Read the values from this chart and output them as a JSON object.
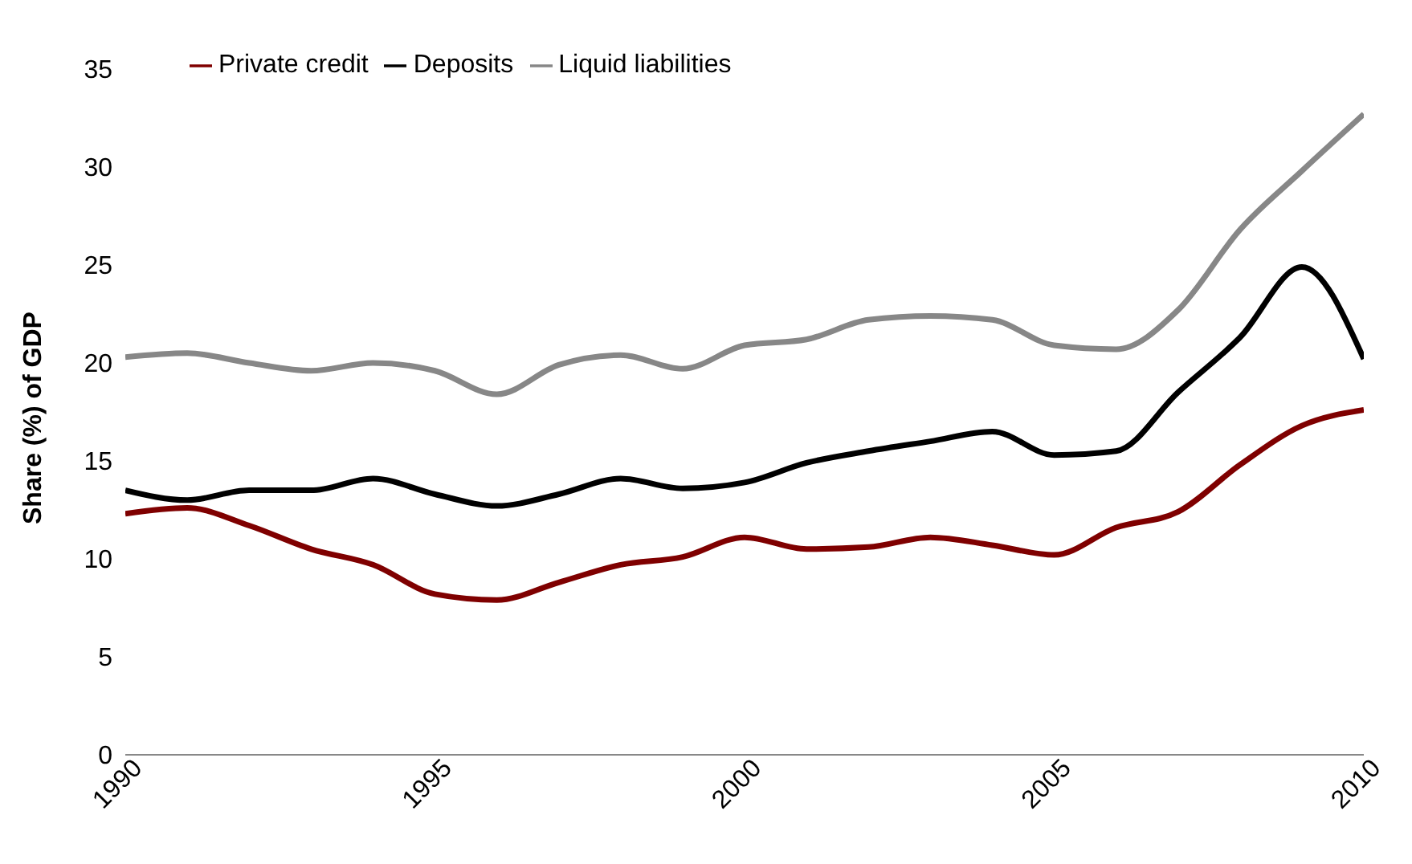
{
  "chart_data": {
    "type": "line",
    "ylabel": "Share (%) of GDP",
    "x": [
      1990,
      1991,
      1992,
      1993,
      1994,
      1995,
      1996,
      1997,
      1998,
      1999,
      2000,
      2001,
      2002,
      2003,
      2004,
      2005,
      2006,
      2007,
      2008,
      2009,
      2010
    ],
    "series": [
      {
        "name": "Private credit",
        "color": "#7f0000",
        "values": [
          12.3,
          12.6,
          11.7,
          10.5,
          9.7,
          8.2,
          7.9,
          8.8,
          9.7,
          10.1,
          11.1,
          10.5,
          10.6,
          11.1,
          10.7,
          10.2,
          11.6,
          12.4,
          14.8,
          16.8,
          17.6
        ]
      },
      {
        "name": "Deposits",
        "color": "#000000",
        "values": [
          13.5,
          13.0,
          13.5,
          13.5,
          14.1,
          13.3,
          12.7,
          13.3,
          14.1,
          13.6,
          13.9,
          14.9,
          15.5,
          16.0,
          16.5,
          15.3,
          15.5,
          18.5,
          21.3,
          24.9,
          20.2
        ]
      },
      {
        "name": "Liquid liabilities",
        "color": "#878787",
        "values": [
          20.3,
          20.5,
          20.0,
          19.6,
          20.0,
          19.6,
          18.4,
          19.9,
          20.4,
          19.7,
          20.9,
          21.2,
          22.2,
          22.4,
          22.2,
          20.9,
          20.7,
          22.7,
          26.8,
          29.8,
          32.7
        ]
      }
    ],
    "xlim": [
      1990,
      2010
    ],
    "xticks": [
      1990,
      1995,
      2000,
      2005,
      2010
    ],
    "ylim": [
      0,
      35
    ],
    "yticks": [
      0,
      5,
      10,
      15,
      20,
      25,
      30,
      35
    ],
    "grid": false,
    "legend": "top left",
    "marker": "none",
    "line_style": "solid"
  }
}
